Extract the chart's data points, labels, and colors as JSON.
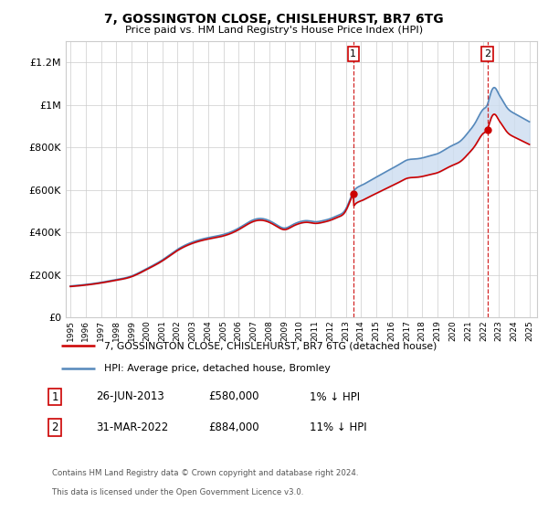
{
  "title": "7, GOSSINGTON CLOSE, CHISLEHURST, BR7 6TG",
  "subtitle": "Price paid vs. HM Land Registry's House Price Index (HPI)",
  "legend_line1": "7, GOSSINGTON CLOSE, CHISLEHURST, BR7 6TG (detached house)",
  "legend_line2": "HPI: Average price, detached house, Bromley",
  "annotation1_date": "26-JUN-2013",
  "annotation1_price": "£580,000",
  "annotation1_pct": "1% ↓ HPI",
  "annotation1_year": 2013.49,
  "annotation1_val": 580000,
  "annotation2_date": "31-MAR-2022",
  "annotation2_price": "£884,000",
  "annotation2_pct": "11% ↓ HPI",
  "annotation2_year": 2022.25,
  "annotation2_val": 884000,
  "footnote_line1": "Contains HM Land Registry data © Crown copyright and database right 2024.",
  "footnote_line2": "This data is licensed under the Open Government Licence v3.0.",
  "hpi_color": "#5588bb",
  "price_color": "#cc0000",
  "shade_color": "#ccddf0",
  "grid_color": "#cccccc",
  "ylim": [
    0,
    1300000
  ],
  "yticks": [
    0,
    200000,
    400000,
    600000,
    800000,
    1000000,
    1200000
  ],
  "ytick_labels": [
    "£0",
    "£200K",
    "£400K",
    "£600K",
    "£800K",
    "£1M",
    "£1.2M"
  ],
  "xmin": 1994.7,
  "xmax": 2025.5
}
